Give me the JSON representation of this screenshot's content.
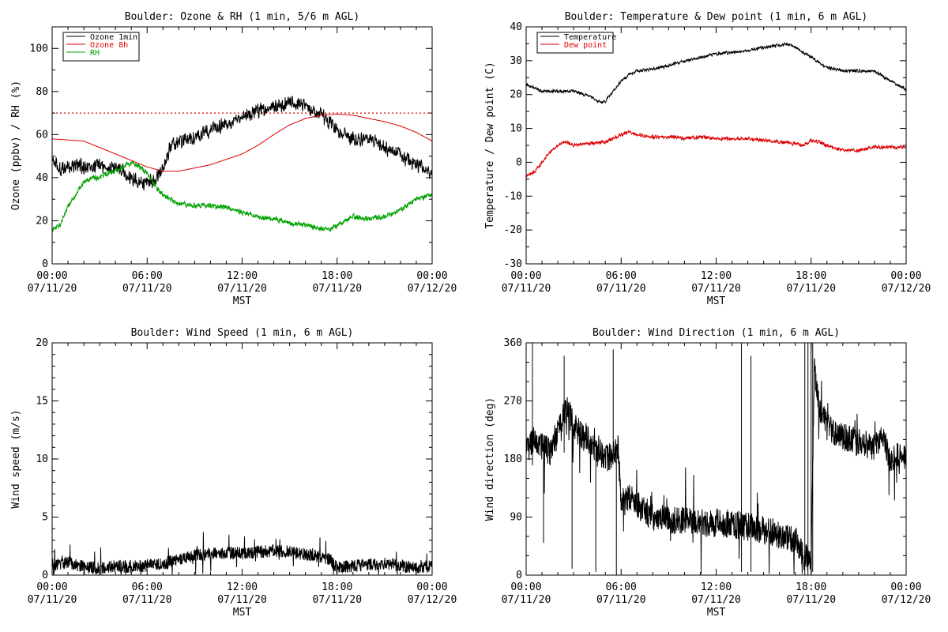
{
  "colors": {
    "black": "#000000",
    "red": "#dd0000",
    "green": "#00a000"
  },
  "chart_data": [
    {
      "id": "ozone",
      "type": "line",
      "title": "Boulder: Ozone & RH (1 min, 5/6 m AGL)",
      "xlabel": "MST",
      "ylabel": "Ozone (ppbv) / RH (%)",
      "xlim": [
        0,
        24
      ],
      "ylim": [
        0,
        110
      ],
      "yticks": [
        0,
        20,
        40,
        60,
        80,
        100
      ],
      "xtick_times": [
        "00:00",
        "06:00",
        "12:00",
        "18:00",
        "00:00"
      ],
      "xtick_dates": [
        "07/11/20",
        "07/11/20",
        "07/11/20",
        "07/11/20",
        "07/12/20"
      ],
      "legend": "top-left",
      "reference_line": {
        "y": 70,
        "style": "dotted",
        "color": "#dd0000"
      },
      "series": [
        {
          "name": "Ozone 1min",
          "color": "#000000",
          "noise": 2.2,
          "x": [
            0,
            0.5,
            1,
            1.5,
            2,
            2.5,
            3,
            3.5,
            4,
            4.5,
            5,
            5.5,
            6,
            6.5,
            7,
            7.5,
            8,
            9,
            10,
            11,
            12,
            13,
            14,
            15,
            16,
            16.5,
            17,
            18,
            19,
            20,
            20.5,
            21,
            22,
            23,
            24
          ],
          "y": [
            48,
            44,
            45,
            46,
            45,
            45,
            46,
            44,
            45,
            43,
            40,
            38,
            38,
            39,
            44,
            55,
            57,
            59,
            62,
            65,
            68,
            71,
            73,
            75,
            73,
            71,
            69,
            62,
            58,
            57,
            58,
            53,
            50,
            46,
            42
          ]
        },
        {
          "name": "Ozone 8h",
          "color": "#dd0000",
          "noise": 0,
          "x": [
            0,
            1,
            2,
            3,
            4,
            5,
            6,
            7,
            8,
            9,
            10,
            11,
            12,
            13,
            14,
            15,
            16,
            17,
            18,
            19,
            20,
            21,
            22,
            23,
            24
          ],
          "y": [
            58,
            57.5,
            57,
            54,
            51,
            48,
            45,
            43,
            43,
            44.5,
            46,
            48.5,
            51,
            55,
            60,
            64.5,
            67.5,
            69,
            69.5,
            69,
            67.5,
            66,
            64,
            61,
            57
          ]
        },
        {
          "name": "RH",
          "color": "#00a000",
          "noise": 0.8,
          "x": [
            0,
            0.5,
            1,
            1.5,
            2,
            2.5,
            3,
            3.5,
            4,
            4.5,
            5,
            5.5,
            6,
            6.5,
            7,
            8,
            9,
            10,
            11,
            12,
            13,
            14,
            15,
            16,
            17,
            17.5,
            18,
            19,
            20,
            21,
            22,
            23,
            24
          ],
          "y": [
            16,
            18,
            27,
            32,
            38,
            40,
            40,
            42,
            43,
            45,
            47,
            45,
            42,
            36,
            32,
            28,
            27,
            27,
            26,
            24,
            22,
            21,
            19,
            18,
            16,
            16,
            18,
            22,
            21,
            22,
            25,
            30,
            32
          ]
        }
      ]
    },
    {
      "id": "temp",
      "type": "line",
      "title": "Boulder: Temperature & Dew point (1 min, 6 m AGL)",
      "xlabel": "MST",
      "ylabel": "Temperature / Dew point (C)",
      "xlim": [
        0,
        24
      ],
      "ylim": [
        -30,
        40
      ],
      "yticks": [
        -30,
        -20,
        -10,
        0,
        10,
        20,
        30,
        40
      ],
      "xtick_times": [
        "00:00",
        "06:00",
        "12:00",
        "18:00",
        "00:00"
      ],
      "xtick_dates": [
        "07/11/20",
        "07/11/20",
        "07/11/20",
        "07/11/20",
        "07/12/20"
      ],
      "legend": "top-left",
      "series": [
        {
          "name": "Temperature",
          "color": "#000000",
          "noise": 0.3,
          "x": [
            0,
            1,
            2,
            3,
            4,
            4.5,
            5,
            5.5,
            6,
            6.5,
            7,
            8,
            9,
            10,
            11,
            12,
            13,
            14,
            15,
            16,
            16.5,
            17,
            18,
            19,
            20,
            21,
            22,
            23,
            24
          ],
          "y": [
            23,
            21,
            21,
            21,
            19.5,
            18,
            18,
            21,
            24,
            26,
            27,
            27.5,
            28.5,
            30,
            31,
            32,
            32.5,
            33,
            34,
            34.5,
            35,
            34,
            31,
            28,
            27,
            27,
            27,
            24,
            21.5
          ]
        },
        {
          "name": "Dew point",
          "color": "#dd0000",
          "noise": 0.35,
          "x": [
            0,
            0.5,
            1,
            1.5,
            2,
            2.5,
            3,
            4,
            5,
            5.5,
            6,
            6.5,
            7,
            8,
            9,
            10,
            11,
            12,
            13,
            14,
            15,
            16,
            17,
            17.5,
            18,
            18.5,
            19,
            20,
            21,
            22,
            23,
            24
          ],
          "y": [
            -4,
            -3,
            0,
            3,
            5,
            6,
            5,
            5.5,
            6,
            7,
            8,
            9,
            8,
            7.5,
            7.5,
            7,
            7.5,
            7,
            7,
            7,
            6.5,
            6,
            5.5,
            5,
            6.5,
            6,
            5,
            3.5,
            3.5,
            4.5,
            4.5,
            4.5
          ]
        }
      ]
    },
    {
      "id": "wspd",
      "type": "line",
      "title": "Boulder: Wind Speed (1 min, 6 m AGL)",
      "xlabel": "MST",
      "ylabel": "Wind speed (m/s)",
      "xlim": [
        0,
        24
      ],
      "ylim": [
        0,
        20
      ],
      "yticks": [
        0,
        5,
        10,
        15,
        20
      ],
      "xtick_times": [
        "00:00",
        "06:00",
        "12:00",
        "18:00",
        "00:00"
      ],
      "xtick_dates": [
        "07/11/20",
        "07/11/20",
        "07/11/20",
        "07/11/20",
        "07/12/20"
      ],
      "series": [
        {
          "color": "#000000",
          "noise": 0.55,
          "jagged": true,
          "x": [
            0,
            1,
            2,
            3,
            4,
            5,
            6,
            7,
            8,
            9,
            10,
            11,
            12,
            13,
            14,
            15,
            16,
            17,
            17.5,
            18,
            19,
            20,
            21,
            22,
            23,
            24
          ],
          "y": [
            0.8,
            1.1,
            0.7,
            0.6,
            0.8,
            0.7,
            0.8,
            1.0,
            1.3,
            1.7,
            1.9,
            1.9,
            1.9,
            2.0,
            2.1,
            2.0,
            1.8,
            1.6,
            1.4,
            0.6,
            0.8,
            0.9,
            1.0,
            0.8,
            0.6,
            0.8
          ]
        }
      ]
    },
    {
      "id": "wdir",
      "type": "line",
      "title": "Boulder: Wind Direction (1 min, 6 m AGL)",
      "xlabel": "MST",
      "ylabel": "Wind direction (deg)",
      "xlim": [
        0,
        24
      ],
      "ylim": [
        0,
        360
      ],
      "yticks": [
        0,
        90,
        180,
        270,
        360
      ],
      "xtick_times": [
        "00:00",
        "06:00",
        "12:00",
        "18:00",
        "00:00"
      ],
      "xtick_dates": [
        "07/11/20",
        "07/11/20",
        "07/11/20",
        "07/11/20",
        "07/12/20"
      ],
      "series": [
        {
          "color": "#000000",
          "noise": 22,
          "jagged": true,
          "x": [
            0,
            0.5,
            1,
            1.5,
            2,
            2.5,
            3,
            3.5,
            4,
            4.5,
            5,
            5.5,
            5.8,
            6,
            6.5,
            7,
            8,
            9,
            10,
            11,
            12,
            13,
            14,
            15,
            16,
            17,
            17.5,
            18,
            18.2,
            18.5,
            19,
            20,
            21,
            22,
            22.5,
            23,
            23.5,
            24
          ],
          "y": [
            190,
            215,
            200,
            190,
            225,
            260,
            235,
            215,
            210,
            190,
            180,
            185,
            200,
            110,
            120,
            110,
            90,
            85,
            85,
            80,
            80,
            80,
            75,
            70,
            60,
            55,
            30,
            20,
            320,
            260,
            230,
            215,
            205,
            200,
            220,
            175,
            185,
            180
          ]
        }
      ]
    }
  ]
}
